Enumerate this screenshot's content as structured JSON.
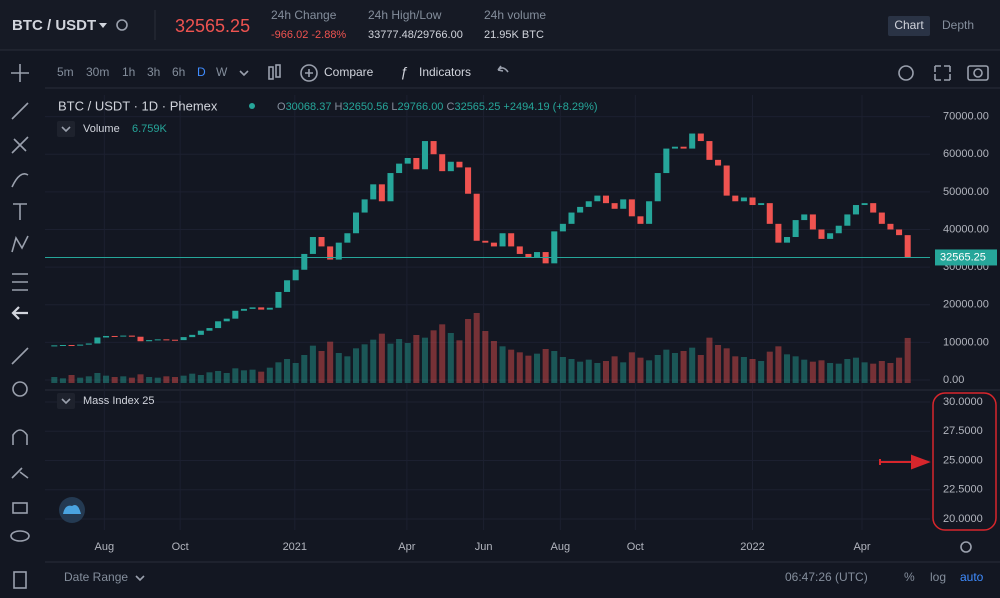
{
  "header": {
    "pair": "BTC / USDT",
    "price": "32565.25",
    "stats": [
      {
        "label": "24h Change",
        "value": "-966.02 -2.88%"
      },
      {
        "label": "24h High/Low",
        "value": "33777.48/29766.00"
      },
      {
        "label": "24h volume",
        "value": "21.95K BTC"
      }
    ],
    "tabs": [
      "Chart",
      "Depth"
    ]
  },
  "toolbar": {
    "intervals": [
      "5m",
      "30m",
      "1h",
      "3h",
      "6h",
      "D",
      "W"
    ],
    "buttons": [
      "Compare",
      "Indicators"
    ]
  },
  "chart_data": [
    {
      "type": "candlestick",
      "title": "BTC / USDT · 1D · Phemex",
      "ohlc": [
        {
          "label": "O",
          "value": "30068.37"
        },
        {
          "label": "H",
          "value": "32650.56"
        },
        {
          "label": "L",
          "value": "29766.00"
        },
        {
          "label": "C",
          "value": "32565.25"
        }
      ],
      "change": "+2494.19 (+8.29%)",
      "up_color": "#26a69a",
      "down_color": "#ef5350",
      "values": [
        9200,
        9300,
        9250,
        9400,
        9700,
        11300,
        11700,
        11600,
        11800,
        11500,
        10300,
        10600,
        10800,
        10700,
        10600,
        11400,
        12000,
        13100,
        13800,
        15600,
        16300,
        18400,
        18900,
        19300,
        18700,
        19200,
        23400,
        26500,
        29300,
        33500,
        38000,
        35500,
        32000,
        36500,
        39000,
        44500,
        48000,
        52000,
        47500,
        55000,
        57500,
        59000,
        56000,
        63500,
        60000,
        55500,
        58000,
        56500,
        49500,
        37000,
        36500,
        35500,
        39000,
        35500,
        33500,
        32500,
        34000,
        31000,
        39500,
        41500,
        44500,
        46000,
        47500,
        49000,
        47000,
        45500,
        48000,
        43500,
        41500,
        47500,
        55000,
        61500,
        62000,
        61500,
        65500,
        63500,
        58500,
        57000,
        49000,
        47500,
        48500,
        46500,
        47000,
        41500,
        36500,
        38000,
        42500,
        44000,
        40000,
        37500,
        39000,
        41000,
        44000,
        46500,
        47000,
        44500,
        41500,
        40000,
        38500,
        32565.25
      ],
      "volume": {
        "name": "Volume",
        "label": "6.759K",
        "values": [
          0.9,
          0.7,
          1.2,
          0.8,
          1.0,
          1.5,
          1.1,
          0.9,
          1.0,
          0.8,
          1.3,
          0.9,
          0.8,
          1.0,
          0.9,
          1.1,
          1.4,
          1.2,
          1.6,
          1.8,
          1.5,
          2.2,
          1.9,
          2.0,
          1.7,
          2.3,
          3.1,
          3.6,
          3.0,
          4.2,
          5.6,
          4.8,
          6.2,
          4.5,
          4.0,
          5.2,
          5.8,
          6.5,
          7.4,
          5.9,
          6.6,
          6.0,
          7.2,
          6.8,
          7.9,
          8.8,
          7.5,
          6.4,
          9.6,
          10.5,
          7.8,
          6.3,
          5.5,
          5.0,
          4.6,
          4.1,
          4.4,
          5.1,
          4.8,
          3.9,
          3.6,
          3.2,
          3.5,
          3.0,
          3.3,
          4.0,
          3.1,
          4.6,
          3.8,
          3.4,
          4.2,
          5.0,
          4.5,
          4.8,
          5.3,
          4.2,
          6.8,
          5.7,
          5.2,
          4.0,
          3.9,
          3.6,
          3.3,
          4.7,
          5.5,
          4.3,
          4.0,
          3.5,
          3.2,
          3.4,
          3.0,
          2.9,
          3.6,
          3.8,
          3.1,
          2.9,
          3.3,
          3.0,
          3.8,
          6.759
        ]
      },
      "xlim": [
        0,
        100
      ],
      "xticks": [
        {
          "value": 6.3,
          "label": "Aug"
        },
        {
          "value": 15.1,
          "label": "Oct"
        },
        {
          "value": 28.4,
          "label": "2021"
        },
        {
          "value": 41.4,
          "label": "Apr"
        },
        {
          "value": 50.3,
          "label": "Jun"
        },
        {
          "value": 59.2,
          "label": "Aug"
        },
        {
          "value": 67.9,
          "label": "Oct"
        },
        {
          "value": 81.5,
          "label": "2022"
        },
        {
          "value": 94.2,
          "label": "Apr"
        }
      ],
      "ylim": [
        -2126,
        75740
      ],
      "yticks": [
        {
          "value": 0,
          "label": "0.00"
        },
        {
          "value": 10000,
          "label": "10000.00"
        },
        {
          "value": 20000,
          "label": "20000.00"
        },
        {
          "value": 30000,
          "label": "30000.00"
        },
        {
          "value": 40000,
          "label": "40000.00"
        },
        {
          "value": 50000,
          "label": "50000.00"
        },
        {
          "value": 60000,
          "label": "60000.00"
        },
        {
          "value": 70000,
          "label": "70000.00"
        }
      ],
      "grid": true
    },
    {
      "type": "line",
      "title": "Mass Index 25",
      "ylim": [
        19.06,
        30.85
      ],
      "yticks": [
        {
          "value": 20,
          "label": "20.0000"
        },
        {
          "value": 22.5,
          "label": "22.5000"
        },
        {
          "value": 25,
          "label": "25.0000"
        },
        {
          "value": 27.5,
          "label": "27.5000"
        },
        {
          "value": 30,
          "label": "30.0000"
        }
      ],
      "grid": true
    }
  ],
  "footer": {
    "date_range": "Date Range",
    "time": "06:47:26 (UTC)",
    "options": [
      "%",
      "log",
      "auto"
    ]
  }
}
